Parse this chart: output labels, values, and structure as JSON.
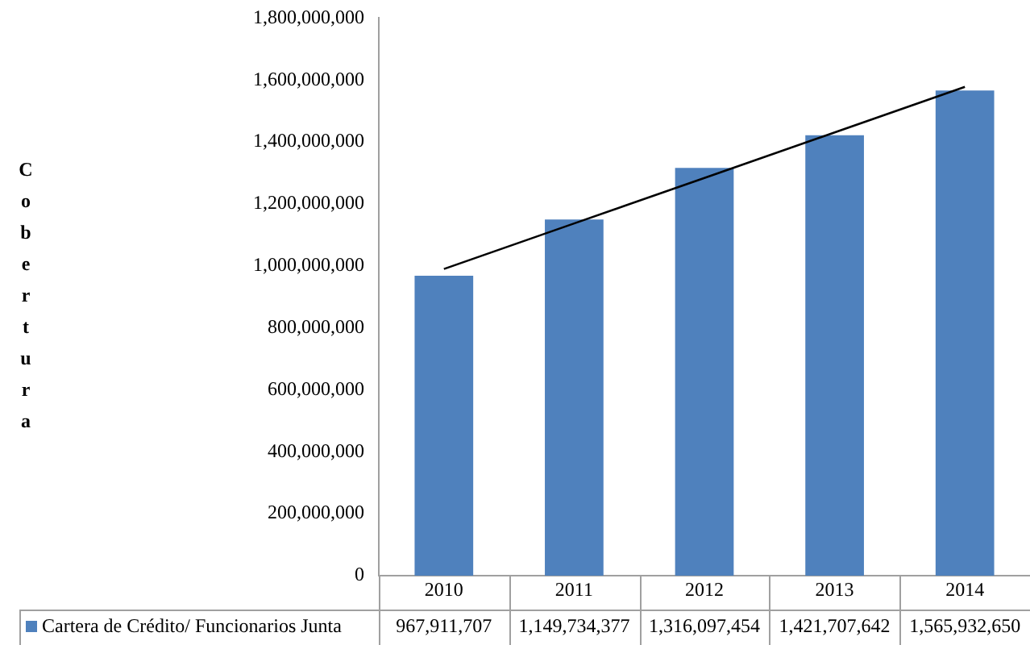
{
  "chart_data": {
    "type": "bar",
    "ylabel": "Cobertura",
    "categories": [
      "2010",
      "2011",
      "2012",
      "2013",
      "2014"
    ],
    "series": [
      {
        "name": "Cartera de Crédito/ Funcionarios Junta",
        "color": "#4f81bd",
        "values": [
          967911707,
          1149734377,
          1316097454,
          1421707642,
          1565932650
        ],
        "value_labels": [
          "967,911,707",
          "1,149,734,377",
          "1,316,097,454",
          "1,421,707,642",
          "1,565,932,650"
        ]
      },
      {
        "type": "line",
        "color": "#000000",
        "values": [
          990000000,
          1137000000,
          1284000000,
          1431000000,
          1578000000
        ]
      }
    ],
    "ylim": [
      0,
      1800000000
    ],
    "yticks": [
      0,
      {
        "value": 200000000,
        "label": "200,000,000"
      },
      {
        "value": 400000000,
        "label": "400,000,000"
      },
      {
        "value": 600000000,
        "label": "600,000,000"
      },
      {
        "value": 800000000,
        "label": "800,000,000"
      },
      {
        "value": 1000000000,
        "label": "1,000,000,000"
      },
      {
        "value": 1200000000,
        "label": "1,200,000,000"
      },
      {
        "value": 1400000000,
        "label": "1,400,000,000"
      },
      {
        "value": 1600000000,
        "label": "1,600,000,000"
      },
      {
        "value": 1800000000,
        "label": "1,800,000,000"
      }
    ],
    "grid": false,
    "legend": "bottom",
    "marker": "none"
  }
}
